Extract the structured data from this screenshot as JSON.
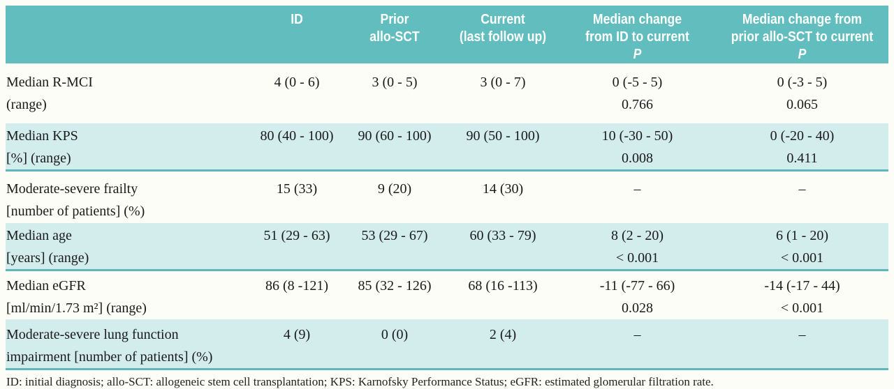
{
  "table": {
    "header": {
      "columns": [
        {
          "lines": [
            "ID"
          ]
        },
        {
          "lines": [
            "Prior",
            "allo-SCT"
          ]
        },
        {
          "lines": [
            "Current",
            "(last follow up)"
          ]
        },
        {
          "lines": [
            "Median change",
            "from ID to current"
          ],
          "p_label": "P"
        },
        {
          "lines": [
            "Median change from",
            "prior allo-SCT to current"
          ],
          "p_label": "P"
        }
      ]
    },
    "rows": [
      {
        "label1": "Median R-MCI",
        "label2": "(range)",
        "id": "4 (0 - 6)",
        "prior": "3 (0 - 5)",
        "current": "3 (0 - 7)",
        "change_id": "0 (-5 - 5)",
        "change_id_p": "0.766",
        "change_sct": "0 (-3 - 5)",
        "change_sct_p": "0.065"
      },
      {
        "label1": "Median KPS",
        "label2": "[%] (range)",
        "id": "80 (40 - 100)",
        "prior": "90 (60 - 100)",
        "current": "90 (50 - 100)",
        "change_id": "10 (-30 - 50)",
        "change_id_p": "0.008",
        "change_sct": "0 (-20 - 40)",
        "change_sct_p": "0.411"
      },
      {
        "label1": "Moderate-severe frailty",
        "label2": "[number of patients] (%)",
        "id": "15 (33)",
        "prior": "9 (20)",
        "current": "14 (30)",
        "change_id": "–",
        "change_id_p": "",
        "change_sct": "–",
        "change_sct_p": ""
      },
      {
        "label1": "Median age",
        "label2": "[years] (range)",
        "id": "51 (29 - 63)",
        "prior": "53 (29 - 67)",
        "current": "60 (33 - 79)",
        "change_id": "8 (2 - 20)",
        "change_id_p": "< 0.001",
        "change_sct": "6 (1 - 20)",
        "change_sct_p": "< 0.001"
      },
      {
        "label1": "Median eGFR",
        "label2": "[ml/min/1.73 m²] (range)",
        "id": "86 (8 -121)",
        "prior": "85 (32 - 126)",
        "current": "68 (16 -113)",
        "change_id": "-11 (-77 - 66)",
        "change_id_p": "0.028",
        "change_sct": "-14 (-17 - 44)",
        "change_sct_p": "< 0.001"
      },
      {
        "label1": "Moderate-severe lung function",
        "label2": "impairment [number of patients] (%)",
        "id": "4 (9)",
        "prior": "0 (0)",
        "current": "2 (4)",
        "change_id": "–",
        "change_id_p": "",
        "change_sct": "–",
        "change_sct_p": ""
      }
    ],
    "footnote": "ID: initial diagnosis; allo-SCT: allogeneic stem cell transplantation; KPS: Karnofsky Performance Status; eGFR: estimated glomerular filtration rate."
  },
  "colors": {
    "header_teal": "#62bdbe",
    "row_teal": "#d3ecec",
    "separator_teal": "#5db7b8",
    "header_text": "#ffffff",
    "body_text": "#1a1a1a"
  }
}
